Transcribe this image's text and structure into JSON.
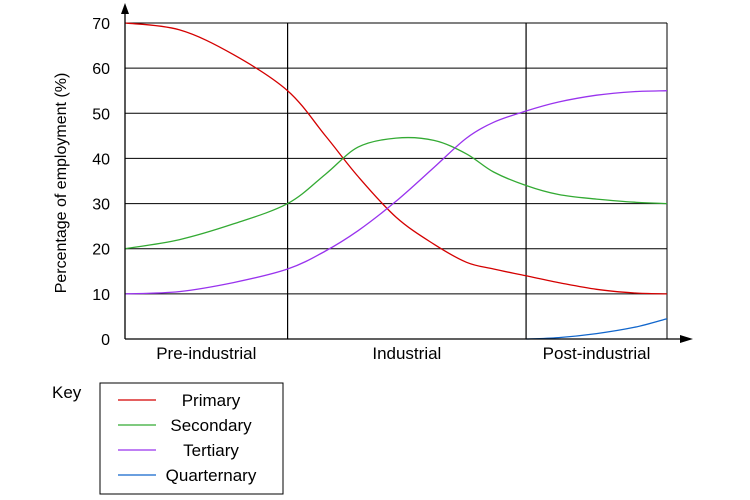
{
  "chart_data": {
    "type": "line",
    "ylabel": "Percentage of employment (%)",
    "ylim": [
      0,
      70
    ],
    "yticks": [
      "0",
      "10",
      "20",
      "30",
      "40",
      "50",
      "60",
      "70"
    ],
    "x_range": [
      0,
      100
    ],
    "phases": [
      {
        "label": "Pre-industrial",
        "start": 0,
        "end": 30
      },
      {
        "label": "Industrial",
        "start": 30,
        "end": 74
      },
      {
        "label": "Post-industrial",
        "start": 74,
        "end": 100
      }
    ],
    "legend_title": "Key",
    "legend_position": "bottom-left",
    "grid": true,
    "series": [
      {
        "name": "Primary",
        "color": "#d40000",
        "points": [
          [
            0,
            70
          ],
          [
            10,
            68.5
          ],
          [
            20,
            63
          ],
          [
            30,
            55
          ],
          [
            37,
            45
          ],
          [
            43,
            36
          ],
          [
            50,
            27
          ],
          [
            57,
            21
          ],
          [
            63,
            17
          ],
          [
            68,
            15.5
          ],
          [
            74,
            14
          ],
          [
            80,
            12.5
          ],
          [
            87,
            11
          ],
          [
            94,
            10.2
          ],
          [
            100,
            10
          ]
        ]
      },
      {
        "name": "Secondary",
        "color": "#33aa33",
        "points": [
          [
            0,
            20
          ],
          [
            10,
            22
          ],
          [
            20,
            25.5
          ],
          [
            30,
            30
          ],
          [
            37,
            36.5
          ],
          [
            43,
            42.5
          ],
          [
            50,
            44.5
          ],
          [
            57,
            44
          ],
          [
            63,
            41
          ],
          [
            68,
            37
          ],
          [
            74,
            34
          ],
          [
            80,
            32
          ],
          [
            87,
            31
          ],
          [
            94,
            30.3
          ],
          [
            100,
            30
          ]
        ]
      },
      {
        "name": "Tertiary",
        "color": "#9933ee",
        "points": [
          [
            0,
            10
          ],
          [
            10,
            10.5
          ],
          [
            20,
            12.5
          ],
          [
            30,
            15.5
          ],
          [
            37,
            19.5
          ],
          [
            43,
            24
          ],
          [
            50,
            30.5
          ],
          [
            57,
            38
          ],
          [
            63,
            44.5
          ],
          [
            68,
            48
          ],
          [
            74,
            50.5
          ],
          [
            80,
            52.5
          ],
          [
            87,
            54
          ],
          [
            94,
            54.8
          ],
          [
            100,
            55
          ]
        ]
      },
      {
        "name": "Quarternary",
        "color": "#1166cc",
        "points": [
          [
            74,
            0
          ],
          [
            80,
            0.3
          ],
          [
            87,
            1.2
          ],
          [
            94,
            2.6
          ],
          [
            100,
            4.5
          ]
        ]
      }
    ]
  }
}
